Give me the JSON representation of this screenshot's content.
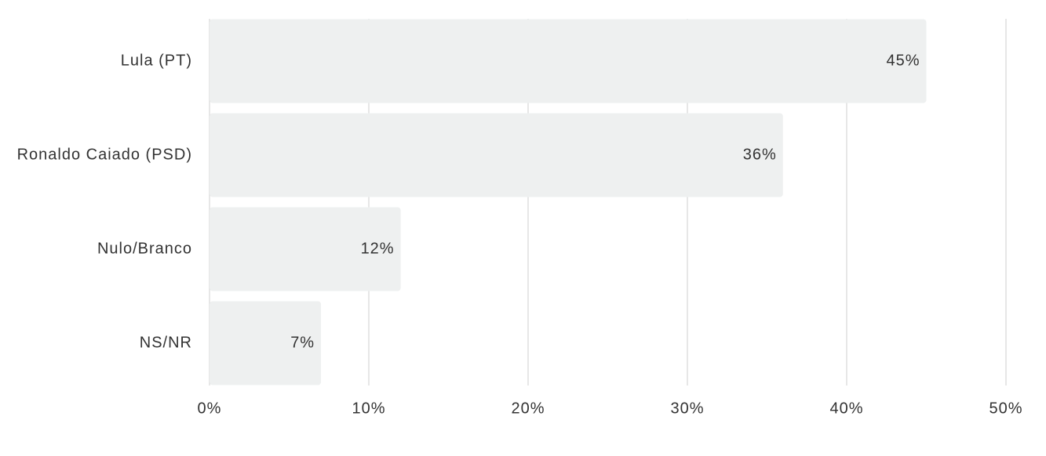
{
  "chart_data": {
    "type": "bar",
    "orientation": "horizontal",
    "categories": [
      "Lula (PT)",
      "Ronaldo Caiado (PSD)",
      "Nulo/Branco",
      "NS/NR"
    ],
    "values": [
      45,
      36,
      12,
      7
    ],
    "value_labels": [
      "45%",
      "36%",
      "12%",
      "7%"
    ],
    "color": "#eef0f0",
    "xlim": [
      0,
      50
    ],
    "xticks": [
      {
        "value": 0,
        "label": "0%"
      },
      {
        "value": 10,
        "label": "10%"
      },
      {
        "value": 20,
        "label": "20%"
      },
      {
        "value": 30,
        "label": "30%"
      },
      {
        "value": 40,
        "label": "40%"
      },
      {
        "value": 50,
        "label": "50%"
      }
    ],
    "grid": true
  }
}
